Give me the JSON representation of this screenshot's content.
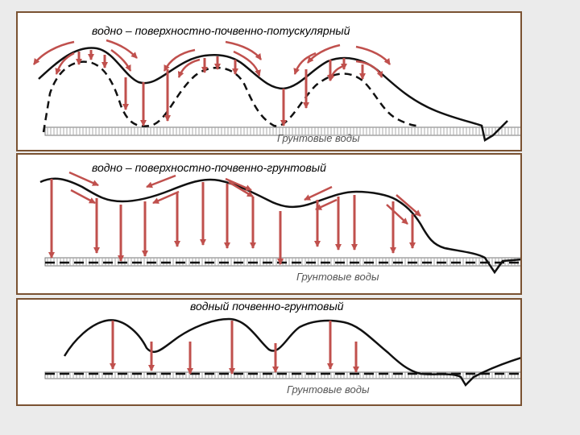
{
  "colors": {
    "panel_border": "#7a5232",
    "arrow": "#c0504d",
    "line": "#111111",
    "background": "#ebebeb"
  },
  "panels": [
    {
      "title": "водно – поверхностно-почвенно-потускулярный",
      "groundwater_label": "Грунтовые воды"
    },
    {
      "title": "водно – поверхностно-почвенно-грунтовый",
      "groundwater_label": "Грунтовые воды"
    },
    {
      "title": "водный почвенно-грунтовый",
      "groundwater_label": "Грунтовые воды"
    }
  ]
}
